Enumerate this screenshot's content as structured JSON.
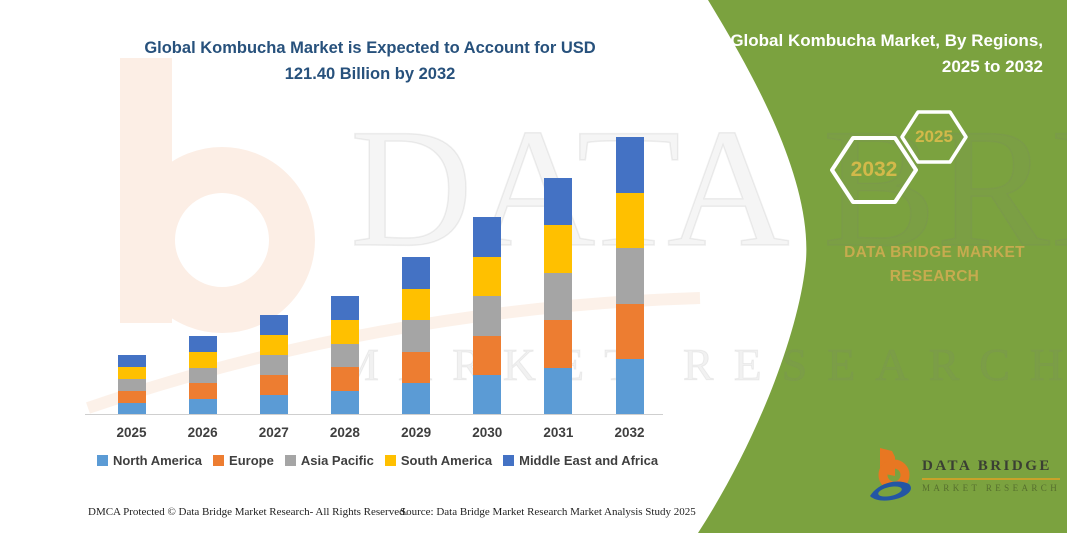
{
  "header": {
    "left_title_line1": "Global Kombucha Market is Expected to Account for USD",
    "left_title_line2": "121.40 Billion by 2032",
    "right_title_line1": "Global Kombucha Market, By Regions,",
    "right_title_line2": "2025 to 2032"
  },
  "side_panel": {
    "panel_color": "#7ba23f",
    "hexagons": [
      {
        "label": "2032"
      },
      {
        "label": "2025"
      }
    ],
    "brand_line1": "DATA BRIDGE MARKET",
    "brand_line2": "RESEARCH",
    "brand_color": "#c6ab4f",
    "logo": {
      "name_text": "DATA BRIDGE",
      "sub_text": "MARKET RESEARCH",
      "b_orange": "#e87722",
      "swoosh_blue": "#2456a4"
    }
  },
  "watermark": {
    "big_text": "DATA BRIDGE",
    "sub_text": "MARKET RESEARCH",
    "b_peach": "#fceee5"
  },
  "chart_data": {
    "type": "bar",
    "stacked": true,
    "title": "Global Kombucha Market is Expected to Account for USD 121.40 Billion by 2032",
    "unit": "USD Billion",
    "xlabel": "",
    "ylabel": "",
    "ylim": [
      0,
      130
    ],
    "gridlines": false,
    "legend_position": "bottom",
    "highlight_total_2032": 121.4,
    "categories": [
      "2025",
      "2026",
      "2027",
      "2028",
      "2029",
      "2030",
      "2031",
      "2032"
    ],
    "series": [
      {
        "name": "North America",
        "color": "#5b9bd5",
        "values": [
          5.2,
          6.9,
          8.7,
          10.4,
          13.8,
          17.3,
          20.7,
          24.28
        ]
      },
      {
        "name": "Europe",
        "color": "#ed7d31",
        "values": [
          5.2,
          6.9,
          8.7,
          10.4,
          13.8,
          17.3,
          20.7,
          24.28
        ]
      },
      {
        "name": "Asia Pacific",
        "color": "#a5a5a5",
        "values": [
          5.2,
          6.9,
          8.7,
          10.4,
          13.8,
          17.3,
          20.7,
          24.28
        ]
      },
      {
        "name": "South America",
        "color": "#ffc000",
        "values": [
          5.2,
          6.9,
          8.7,
          10.4,
          13.8,
          17.3,
          20.7,
          24.28
        ]
      },
      {
        "name": "Middle East and Africa",
        "color": "#4472c4",
        "values": [
          5.2,
          6.9,
          8.7,
          10.4,
          13.8,
          17.3,
          20.7,
          24.28
        ]
      }
    ]
  },
  "footer": {
    "left": "DMCA Protected © Data Bridge Market Research-  All Rights Reserved.",
    "right": "Source: Data Bridge Market Research  Market Analysis Study 2025"
  }
}
